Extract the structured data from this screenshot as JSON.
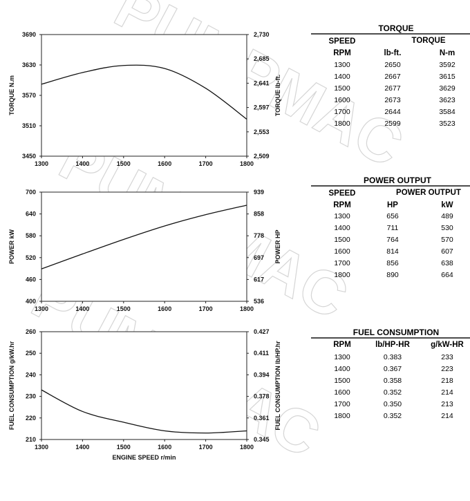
{
  "watermark": "PUMPMAC",
  "chart_data": [
    {
      "type": "line",
      "x": [
        1300,
        1400,
        1500,
        1600,
        1700,
        1800
      ],
      "xlim": [
        1300,
        1800
      ],
      "xticks": [
        "1300",
        "1400",
        "1500",
        "1600",
        "1700",
        "1800"
      ],
      "ylabel": "TORQUE  N.m",
      "ylim": [
        3450,
        3690
      ],
      "yticks": [
        "3450",
        "3510",
        "3570",
        "3630",
        "3690"
      ],
      "y2label": "TORQUE  lb-ft.",
      "y2ticks": [
        "2,509",
        "2,553",
        "2,597",
        "2,641",
        "2,685",
        "2,730"
      ],
      "series": [
        {
          "values": [
            3592,
            3615,
            3629,
            3623,
            3584,
            3523
          ]
        }
      ]
    },
    {
      "type": "line",
      "x": [
        1300,
        1400,
        1500,
        1600,
        1700,
        1800
      ],
      "xlim": [
        1300,
        1800
      ],
      "xticks": [
        "1300",
        "1400",
        "1500",
        "1600",
        "1700",
        "1800"
      ],
      "ylabel": "POWER  kW",
      "ylim": [
        400,
        700
      ],
      "yticks": [
        "400",
        "460",
        "520",
        "580",
        "640",
        "700"
      ],
      "y2label": "POWER  HP",
      "y2ticks": [
        "536",
        "617",
        "697",
        "778",
        "858",
        "939"
      ],
      "series": [
        {
          "values": [
            489,
            530,
            570,
            607,
            638,
            664
          ]
        }
      ]
    },
    {
      "type": "line",
      "x": [
        1300,
        1400,
        1500,
        1600,
        1700,
        1800
      ],
      "xlim": [
        1300,
        1800
      ],
      "xticks": [
        "1300",
        "1400",
        "1500",
        "1600",
        "1700",
        "1800"
      ],
      "xlabel": "ENGINE SPEED  r/min",
      "ylabel": "FUEL CONSUMPTION  g/kW.hr",
      "ylim": [
        210,
        260
      ],
      "yticks": [
        "210",
        "220",
        "230",
        "240",
        "250",
        "260"
      ],
      "y2label": "FUEL CONSUMPTION  lb/HP.hr",
      "y2ticks": [
        "0.345",
        "0.361",
        "0.378",
        "0.394",
        "0.411",
        "0.427"
      ],
      "series": [
        {
          "values": [
            233,
            223,
            218,
            214,
            213,
            214
          ]
        }
      ]
    }
  ],
  "tables": {
    "torque": {
      "title": "TORQUE",
      "group1": "SPEED",
      "group2": "TORQUE",
      "cols": [
        "RPM",
        "lb-ft.",
        "N-m"
      ],
      "rows": [
        [
          "1300",
          "2650",
          "3592"
        ],
        [
          "1400",
          "2667",
          "3615"
        ],
        [
          "1500",
          "2677",
          "3629"
        ],
        [
          "1600",
          "2673",
          "3623"
        ],
        [
          "1700",
          "2644",
          "3584"
        ],
        [
          "1800",
          "2599",
          "3523"
        ]
      ]
    },
    "power": {
      "title": "POWER OUTPUT",
      "group1": "SPEED",
      "group2": "POWER OUTPUT",
      "cols": [
        "RPM",
        "HP",
        "kW"
      ],
      "rows": [
        [
          "1300",
          "656",
          "489"
        ],
        [
          "1400",
          "711",
          "530"
        ],
        [
          "1500",
          "764",
          "570"
        ],
        [
          "1600",
          "814",
          "607"
        ],
        [
          "1700",
          "856",
          "638"
        ],
        [
          "1800",
          "890",
          "664"
        ]
      ]
    },
    "fuel": {
      "title": "FUEL CONSUMPTION",
      "cols": [
        "RPM",
        "lb/HP-HR",
        "g/kW-HR"
      ],
      "rows": [
        [
          "1300",
          "0.383",
          "233"
        ],
        [
          "1400",
          "0.367",
          "223"
        ],
        [
          "1500",
          "0.358",
          "218"
        ],
        [
          "1600",
          "0.352",
          "214"
        ],
        [
          "1700",
          "0.350",
          "213"
        ],
        [
          "1800",
          "0.352",
          "214"
        ]
      ]
    }
  }
}
